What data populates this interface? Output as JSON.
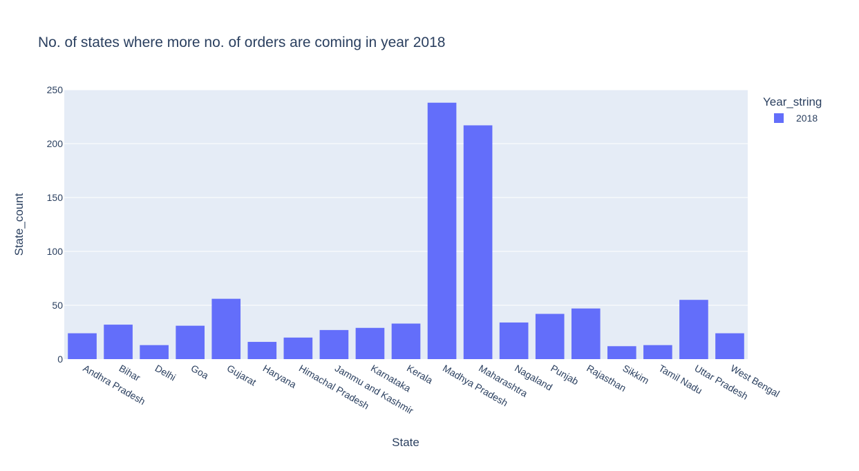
{
  "chart_data": {
    "type": "bar",
    "title": "No. of states where more no. of orders are coming in year 2018",
    "xlabel": "State",
    "ylabel": "State_count",
    "ylim": [
      0,
      250
    ],
    "yticks": [
      0,
      50,
      100,
      150,
      200,
      250
    ],
    "grid": true,
    "legend": {
      "title": "Year_string",
      "placement": "top-right"
    },
    "colors": {
      "bar": "#636efa",
      "plot_bg": "#e5ecf6",
      "grid": "#ffffff",
      "text": "#2a3f5f"
    },
    "categories": [
      "Andhra Pradesh",
      "Bihar",
      "Delhi",
      "Goa",
      "Gujarat",
      "Haryana",
      "Himachal Pradesh",
      "Jammu and Kashmir",
      "Karnataka",
      "Kerala",
      "Madhya Pradesh",
      "Maharashtra",
      "Nagaland",
      "Punjab",
      "Rajasthan",
      "Sikkim",
      "Tamil Nadu",
      "Uttar Pradesh",
      "West Bengal"
    ],
    "series": [
      {
        "name": "2018",
        "values": [
          24,
          32,
          13,
          31,
          56,
          16,
          20,
          27,
          29,
          33,
          238,
          217,
          34,
          42,
          47,
          12,
          13,
          55,
          24
        ]
      }
    ]
  }
}
